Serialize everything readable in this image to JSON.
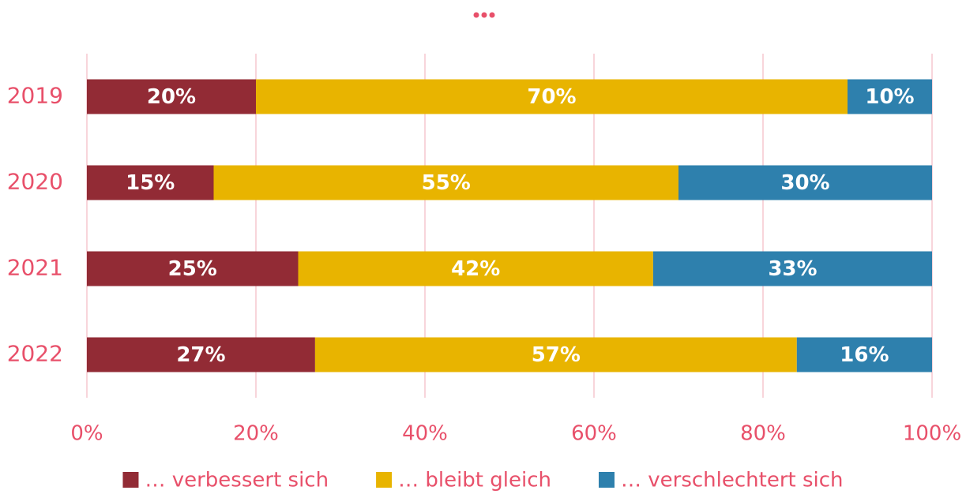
{
  "chart_data": {
    "type": "stacked_barh",
    "categories": [
      "2019",
      "2020",
      "2021",
      "2022"
    ],
    "series": [
      {
        "name": "… verbessert sich",
        "color": "#922b35",
        "values": [
          20,
          15,
          25,
          27
        ],
        "value_labels": [
          "20%",
          "15%",
          "25%",
          "27%"
        ]
      },
      {
        "name": "… bleibt gleich",
        "color": "#e8b400",
        "values": [
          70,
          55,
          42,
          57
        ],
        "value_labels": [
          "70%",
          "55%",
          "42%",
          "57%"
        ]
      },
      {
        "name": "… verschlechtert sich",
        "color": "#2e80ad",
        "values": [
          10,
          30,
          33,
          16
        ],
        "value_labels": [
          "10%",
          "30%",
          "33%",
          "16%"
        ]
      }
    ],
    "xlim": [
      0,
      100
    ],
    "xticks": [
      {
        "value": 0,
        "label": "0%"
      },
      {
        "value": 20,
        "label": "20%"
      },
      {
        "value": 40,
        "label": "40%"
      },
      {
        "value": 60,
        "label": "60%"
      },
      {
        "value": 80,
        "label": "80%"
      },
      {
        "value": 100,
        "label": "100%"
      }
    ],
    "grid": true,
    "legend": "bottom"
  }
}
